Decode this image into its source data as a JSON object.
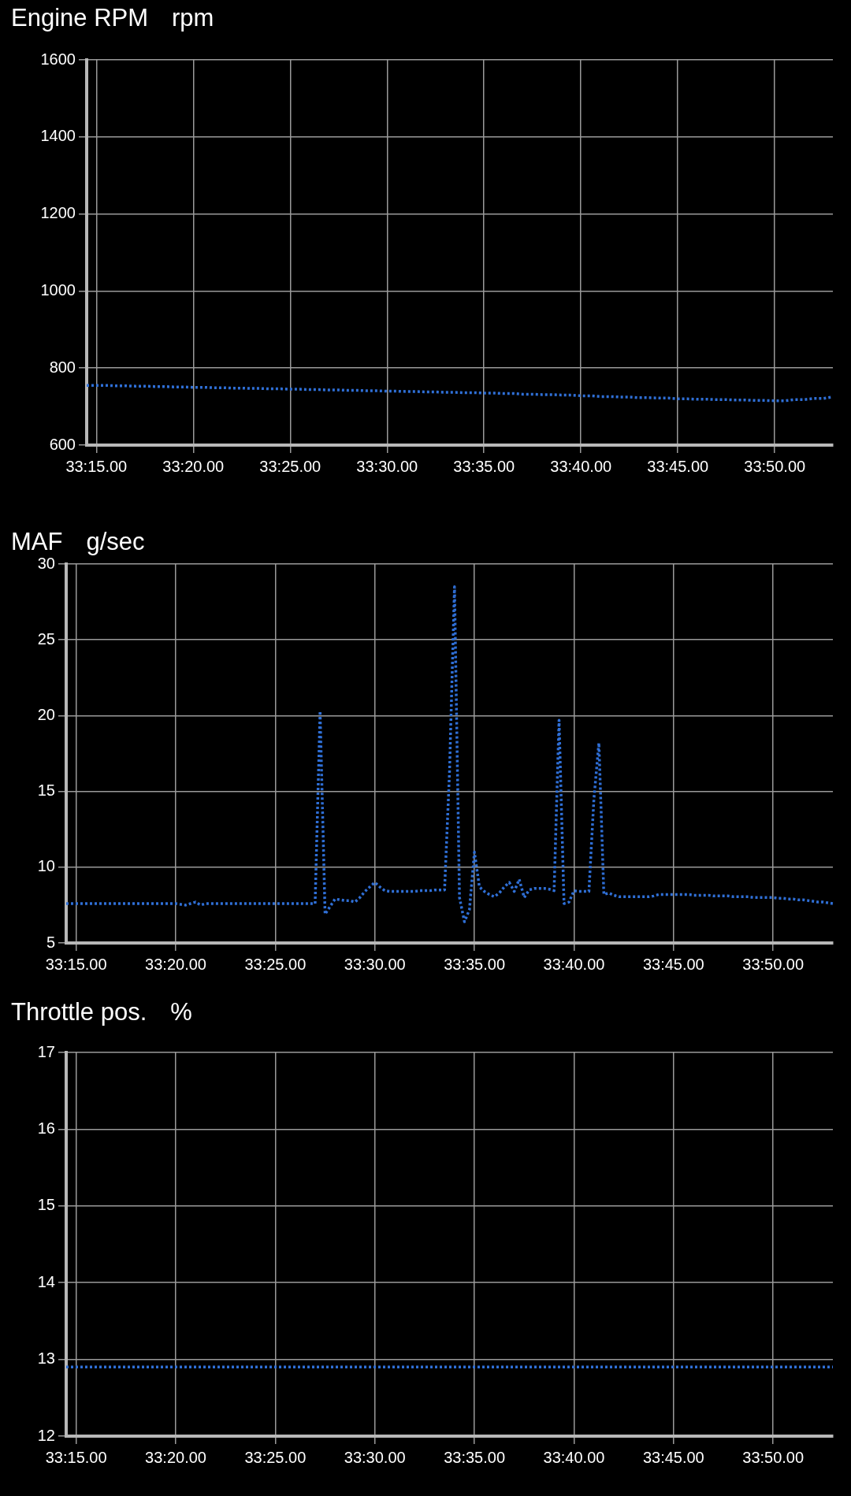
{
  "chart_data": [
    {
      "type": "line",
      "title": "Engine RPM",
      "ylabel": "rpm",
      "line_style": "dotted",
      "marker": "none",
      "grid": true,
      "ylim": [
        600,
        1600
      ],
      "yticks": [
        600,
        800,
        1000,
        1200,
        1400,
        1600
      ],
      "categories": [
        null,
        "33:15.00",
        null,
        null,
        null,
        null,
        null,
        null,
        null,
        null,
        null,
        "33:20.00",
        null,
        null,
        null,
        null,
        null,
        null,
        null,
        null,
        null,
        "33:25.00",
        null,
        null,
        null,
        null,
        null,
        null,
        null,
        null,
        null,
        "33:30.00",
        null,
        null,
        null,
        null,
        null,
        null,
        null,
        null,
        null,
        "33:35.00",
        null,
        null,
        null,
        null,
        null,
        null,
        null,
        null,
        null,
        "33:40.00",
        null,
        null,
        null,
        null,
        null,
        null,
        null,
        null,
        null,
        "33:45.00",
        null,
        null,
        null,
        null,
        null,
        null,
        null,
        null,
        null,
        "33:50.00",
        null,
        null,
        null,
        null,
        null,
        null
      ],
      "series": [
        {
          "color": "#2f6fd6",
          "values": [
            755,
            755,
            755,
            754,
            754,
            753,
            753,
            752,
            752,
            751,
            751,
            750,
            750,
            749,
            749,
            748,
            748,
            747,
            747,
            746,
            746,
            745,
            745,
            744,
            744,
            743,
            743,
            742,
            742,
            741,
            741,
            740,
            740,
            739,
            739,
            738,
            738,
            737,
            737,
            736,
            736,
            735,
            735,
            734,
            734,
            732,
            732,
            731,
            731,
            730,
            730,
            728,
            728,
            726,
            726,
            725,
            725,
            723,
            723,
            722,
            722,
            720,
            720,
            719,
            719,
            718,
            718,
            717,
            717,
            716,
            716,
            715,
            715,
            718,
            718,
            721,
            721,
            725
          ]
        }
      ]
    },
    {
      "type": "line",
      "title": "MAF",
      "ylabel": "g/sec",
      "line_style": "dotted",
      "marker": "none",
      "grid": true,
      "ylim": [
        5,
        30
      ],
      "yticks": [
        5,
        10,
        15,
        20,
        25,
        30
      ],
      "categories": [
        null,
        null,
        "33:15.00",
        null,
        null,
        null,
        null,
        null,
        null,
        null,
        null,
        null,
        null,
        null,
        null,
        null,
        null,
        null,
        null,
        null,
        null,
        null,
        "33:20.00",
        null,
        null,
        null,
        null,
        null,
        null,
        null,
        null,
        null,
        null,
        null,
        null,
        null,
        null,
        null,
        null,
        null,
        null,
        null,
        "33:25.00",
        null,
        null,
        null,
        null,
        null,
        null,
        null,
        null,
        null,
        null,
        null,
        null,
        null,
        null,
        null,
        null,
        null,
        null,
        null,
        "33:30.00",
        null,
        null,
        null,
        null,
        null,
        null,
        null,
        null,
        null,
        null,
        null,
        null,
        null,
        null,
        null,
        null,
        null,
        null,
        null,
        "33:35.00",
        null,
        null,
        null,
        null,
        null,
        null,
        null,
        null,
        null,
        null,
        null,
        null,
        null,
        null,
        null,
        null,
        null,
        null,
        null,
        "33:40.00",
        null,
        null,
        null,
        null,
        null,
        null,
        null,
        null,
        null,
        null,
        null,
        null,
        null,
        null,
        null,
        null,
        null,
        null,
        null,
        "33:45.00",
        null,
        null,
        null,
        null,
        null,
        null,
        null,
        null,
        null,
        null,
        null,
        null,
        null,
        null,
        null,
        null,
        null,
        null,
        null,
        "33:50.00",
        null,
        null,
        null,
        null,
        null,
        null,
        null,
        null,
        null,
        null,
        null,
        null
      ],
      "series": [
        {
          "color": "#2f6fd6",
          "values": [
            7.6,
            7.6,
            7.6,
            7.6,
            7.6,
            7.6,
            7.6,
            7.6,
            7.6,
            7.6,
            7.6,
            7.6,
            7.6,
            7.6,
            7.6,
            7.6,
            7.6,
            7.6,
            7.6,
            7.6,
            7.6,
            7.6,
            7.6,
            7.55,
            7.5,
            7.6,
            7.7,
            7.5,
            7.6,
            7.6,
            7.6,
            7.6,
            7.6,
            7.6,
            7.6,
            7.6,
            7.6,
            7.6,
            7.6,
            7.6,
            7.6,
            7.6,
            7.6,
            7.6,
            7.6,
            7.6,
            7.6,
            7.6,
            7.6,
            7.6,
            7.6,
            20.3,
            6.9,
            7.4,
            7.9,
            7.85,
            7.8,
            7.8,
            7.7,
            8.0,
            8.4,
            8.7,
            9.0,
            8.7,
            8.45,
            8.4,
            8.4,
            8.4,
            8.4,
            8.4,
            8.4,
            8.45,
            8.45,
            8.45,
            8.5,
            8.5,
            8.5,
            16.3,
            28.5,
            8.0,
            6.4,
            7.2,
            11.0,
            8.7,
            8.4,
            8.2,
            8.05,
            8.3,
            8.7,
            9.0,
            8.4,
            9.2,
            8.0,
            8.5,
            8.6,
            8.6,
            8.6,
            8.55,
            8.45,
            19.7,
            7.6,
            7.7,
            8.45,
            8.4,
            8.4,
            8.4,
            14.5,
            18.2,
            8.2,
            8.3,
            8.15,
            8.05,
            8.05,
            8.05,
            8.05,
            8.05,
            8.05,
            8.05,
            8.1,
            8.2,
            8.2,
            8.2,
            8.2,
            8.2,
            8.2,
            8.2,
            8.15,
            8.15,
            8.15,
            8.15,
            8.1,
            8.1,
            8.1,
            8.1,
            8.05,
            8.05,
            8.05,
            8.05,
            8.0,
            8.0,
            8.0,
            8.0,
            8.0,
            7.95,
            7.95,
            7.9,
            7.9,
            7.85,
            7.85,
            7.8,
            7.75,
            7.7,
            7.7,
            7.65,
            7.6
          ]
        }
      ]
    },
    {
      "type": "line",
      "title": "Throttle pos.",
      "ylabel": "%",
      "line_style": "dotted",
      "marker": "none",
      "grid": true,
      "ylim": [
        12,
        17
      ],
      "yticks": [
        12,
        13,
        14,
        15,
        16,
        17
      ],
      "categories": [
        null,
        "33:15.00",
        null,
        null,
        null,
        null,
        null,
        null,
        null,
        null,
        null,
        "33:20.00",
        null,
        null,
        null,
        null,
        null,
        null,
        null,
        null,
        null,
        "33:25.00",
        null,
        null,
        null,
        null,
        null,
        null,
        null,
        null,
        null,
        "33:30.00",
        null,
        null,
        null,
        null,
        null,
        null,
        null,
        null,
        null,
        "33:35.00",
        null,
        null,
        null,
        null,
        null,
        null,
        null,
        null,
        null,
        "33:40.00",
        null,
        null,
        null,
        null,
        null,
        null,
        null,
        null,
        null,
        "33:45.00",
        null,
        null,
        null,
        null,
        null,
        null,
        null,
        null,
        null,
        "33:50.00",
        null,
        null,
        null,
        null,
        null,
        null
      ],
      "series": [
        {
          "color": "#2f6fd6",
          "values": [
            12.9,
            12.9,
            12.9,
            12.9,
            12.9,
            12.9,
            12.9,
            12.9,
            12.9,
            12.9,
            12.9,
            12.9,
            12.9,
            12.9,
            12.9,
            12.9,
            12.9,
            12.9,
            12.9,
            12.9,
            12.9,
            12.9,
            12.9,
            12.9,
            12.9,
            12.9,
            12.9,
            12.9,
            12.9,
            12.9,
            12.9,
            12.9,
            12.9,
            12.9,
            12.9,
            12.9,
            12.9,
            12.9,
            12.9,
            12.9,
            12.9,
            12.9,
            12.9,
            12.9,
            12.9,
            12.9,
            12.9,
            12.9,
            12.9,
            12.9,
            12.9,
            12.9,
            12.9,
            12.9,
            12.9,
            12.9,
            12.9,
            12.9,
            12.9,
            12.9,
            12.9,
            12.9,
            12.9,
            12.9,
            12.9,
            12.9,
            12.9,
            12.9,
            12.9,
            12.9,
            12.9,
            12.9,
            12.9,
            12.9,
            12.9,
            12.9,
            12.9,
            12.9
          ]
        }
      ]
    }
  ]
}
